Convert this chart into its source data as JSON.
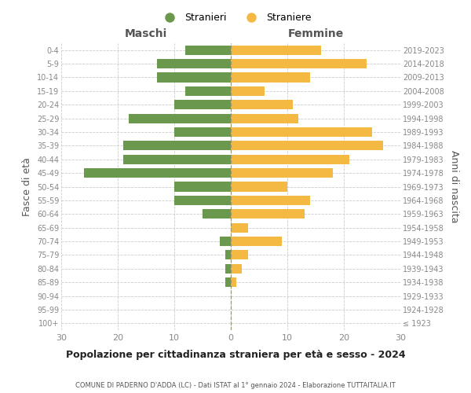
{
  "age_groups": [
    "100+",
    "95-99",
    "90-94",
    "85-89",
    "80-84",
    "75-79",
    "70-74",
    "65-69",
    "60-64",
    "55-59",
    "50-54",
    "45-49",
    "40-44",
    "35-39",
    "30-34",
    "25-29",
    "20-24",
    "15-19",
    "10-14",
    "5-9",
    "0-4"
  ],
  "birth_years": [
    "≤ 1923",
    "1924-1928",
    "1929-1933",
    "1934-1938",
    "1939-1943",
    "1944-1948",
    "1949-1953",
    "1954-1958",
    "1959-1963",
    "1964-1968",
    "1969-1973",
    "1974-1978",
    "1979-1983",
    "1984-1988",
    "1989-1993",
    "1994-1998",
    "1999-2003",
    "2004-2008",
    "2009-2013",
    "2014-2018",
    "2019-2023"
  ],
  "males": [
    0,
    0,
    0,
    1,
    1,
    1,
    2,
    0,
    5,
    10,
    10,
    26,
    19,
    19,
    10,
    18,
    10,
    8,
    13,
    13,
    8
  ],
  "females": [
    0,
    0,
    0,
    1,
    2,
    3,
    9,
    3,
    13,
    14,
    10,
    18,
    21,
    27,
    25,
    12,
    11,
    6,
    14,
    24,
    16
  ],
  "male_color": "#6a994e",
  "female_color": "#f4b942",
  "title": "Popolazione per cittadinanza straniera per età e sesso - 2024",
  "subtitle": "COMUNE DI PADERNO D'ADDA (LC) - Dati ISTAT al 1° gennaio 2024 - Elaborazione TUTTAITALIA.IT",
  "xlabel_left": "Maschi",
  "xlabel_right": "Femmine",
  "ylabel_left": "Fasce di età",
  "ylabel_right": "Anni di nascita",
  "legend_male": "Stranieri",
  "legend_female": "Straniere",
  "xlim": 30,
  "background_color": "#ffffff",
  "grid_color": "#cccccc",
  "axis_label_color": "#555555",
  "tick_color": "#888888"
}
